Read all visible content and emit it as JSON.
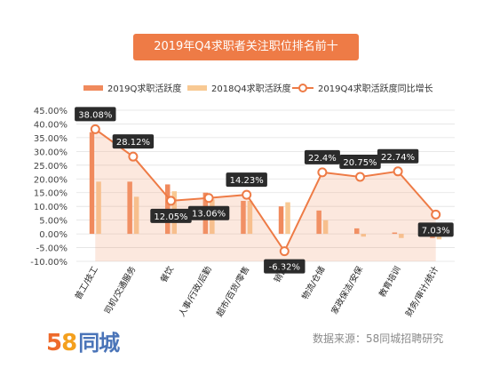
{
  "chart_data": {
    "type": "bar+line",
    "title": "2019年Q4求职者关注职位排名前十",
    "categories": [
      "普工/技工",
      "司机/交通服务",
      "餐饮",
      "人事/行政/后勤",
      "超市/百货/零售",
      "销售",
      "物流/仓储",
      "家政保洁/安保",
      "教育培训",
      "财务/审计/统计"
    ],
    "series": [
      {
        "name": "2019Q求职活跃度",
        "kind": "bar",
        "color": "#f08a5d",
        "values": [
          37,
          19,
          18,
          15,
          12,
          10,
          8.5,
          2,
          0.5,
          -1.5
        ]
      },
      {
        "name": "2018Q4求职活跃度",
        "kind": "bar",
        "color": "#f8c993",
        "values": [
          19,
          13.5,
          15.5,
          12.5,
          12,
          11.5,
          5,
          -1,
          -1.5,
          -2
        ]
      },
      {
        "name": "2019Q4求职活跃度同比增长",
        "kind": "line",
        "color": "#ee7b46",
        "values": [
          38.08,
          28.12,
          12.05,
          13.06,
          14.23,
          -6.32,
          22.4,
          20.75,
          22.74,
          7.03
        ],
        "labels": [
          "38.08%",
          "28.12%",
          "12.05%",
          "13.06%",
          "14.23%",
          "-6.32%",
          "22.4%",
          "20.75%",
          "22.74%",
          "7.03%"
        ]
      }
    ],
    "ylim": [
      -10,
      45
    ],
    "yticks": [
      -10,
      -5,
      0,
      5,
      10,
      15,
      20,
      25,
      30,
      35,
      40,
      45
    ],
    "ytick_labels": [
      "-10.00%",
      "-5.00%",
      "0.00%",
      "5.00%",
      "10.00%",
      "15.00%",
      "20.00%",
      "25.00%",
      "30.00%",
      "35.00%",
      "40.00%",
      "45.00%"
    ],
    "grid": true,
    "legend": "top"
  },
  "logo": {
    "num5": "5",
    "num8": "8",
    "text": "同城"
  },
  "source": "数据来源：58同城招聘研究"
}
